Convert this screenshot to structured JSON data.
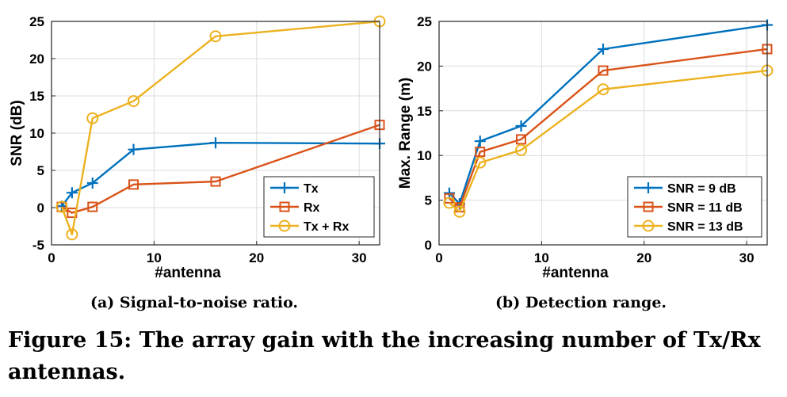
{
  "figure_caption": "Figure 15: The array gain with the increasing number of Tx/Rx antennas.",
  "colors": {
    "blue": "#0072BD",
    "orange": "#D95319",
    "yellow": "#EDB120"
  },
  "chart_data": [
    {
      "type": "line",
      "caption": "(a)  Signal-to-noise ratio.",
      "xlabel": "#antenna",
      "ylabel": "SNR (dB)",
      "xlim": [
        0,
        32
      ],
      "ylim": [
        -5,
        25
      ],
      "xticks": [
        0,
        10,
        20,
        30
      ],
      "yticks": [
        -5,
        0,
        5,
        10,
        15,
        20,
        25
      ],
      "grid": true,
      "legend_position": "bottom-right",
      "series": [
        {
          "name": "Tx",
          "marker": "plus",
          "color": "#0072BD",
          "x": [
            1,
            2,
            4,
            8,
            16,
            32
          ],
          "y": [
            0.2,
            2.0,
            3.3,
            7.8,
            8.7,
            8.6
          ]
        },
        {
          "name": "Rx",
          "marker": "square",
          "color": "#D95319",
          "x": [
            1,
            2,
            4,
            8,
            16,
            32
          ],
          "y": [
            0.1,
            -0.7,
            0.1,
            3.1,
            3.5,
            11.1
          ]
        },
        {
          "name": "Tx + Rx",
          "marker": "circle",
          "color": "#EDB120",
          "x": [
            1,
            2,
            4,
            8,
            16,
            32
          ],
          "y": [
            0.1,
            -3.6,
            12.0,
            14.3,
            23.0,
            25.0
          ]
        }
      ]
    },
    {
      "type": "line",
      "caption": "(b)  Detection range.",
      "xlabel": "#antenna",
      "ylabel": "Max. Range (m)",
      "xlim": [
        0,
        32
      ],
      "ylim": [
        0,
        25
      ],
      "xticks": [
        0,
        10,
        20,
        30
      ],
      "yticks": [
        0,
        5,
        10,
        15,
        20,
        25
      ],
      "grid": true,
      "legend_position": "bottom-right",
      "series": [
        {
          "name": "SNR = 9 dB",
          "marker": "plus",
          "color": "#0072BD",
          "x": [
            1,
            2,
            4,
            8,
            16,
            32
          ],
          "y": [
            5.8,
            4.6,
            11.6,
            13.3,
            21.9,
            24.6
          ]
        },
        {
          "name": "SNR = 11 dB",
          "marker": "square",
          "color": "#D95319",
          "x": [
            1,
            2,
            4,
            8,
            16,
            32
          ],
          "y": [
            5.2,
            4.2,
            10.4,
            11.8,
            19.5,
            21.9
          ]
        },
        {
          "name": "SNR = 13 dB",
          "marker": "circle",
          "color": "#EDB120",
          "x": [
            1,
            2,
            4,
            8,
            16,
            32
          ],
          "y": [
            4.7,
            3.7,
            9.2,
            10.6,
            17.4,
            19.5
          ]
        }
      ]
    }
  ]
}
